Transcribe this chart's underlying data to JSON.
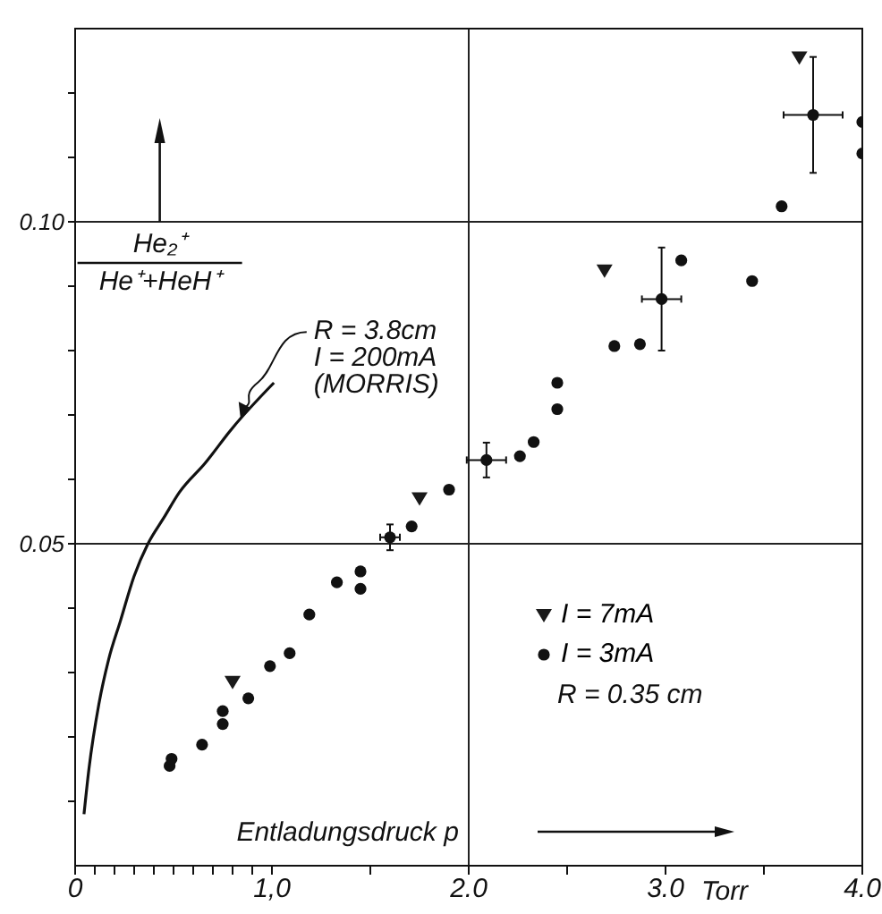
{
  "chart_data": {
    "type": "scatter",
    "ylabel": "He₂⁺",
    "xlabel": "Entladungsdruck p",
    "xlim": [
      0,
      4
    ],
    "ylim": [
      0,
      0.13
    ],
    "xticks": [
      {
        "value": 0,
        "label": "0"
      },
      {
        "value": 0.1,
        "label": null
      },
      {
        "value": 0.2,
        "label": null
      },
      {
        "value": 0.3,
        "label": null
      },
      {
        "value": 0.4,
        "label": null
      },
      {
        "value": 0.5,
        "label": null
      },
      {
        "value": 0.6,
        "label": null
      },
      {
        "value": 0.7,
        "label": null
      },
      {
        "value": 0.8,
        "label": null
      },
      {
        "value": 0.9,
        "label": null
      },
      {
        "value": 1,
        "label": "1,0"
      },
      {
        "value": 1.5,
        "label": null
      },
      {
        "value": 2,
        "label": "2.0"
      },
      {
        "value": 2.5,
        "label": null
      },
      {
        "value": 3,
        "label": "3.0"
      },
      {
        "value": 3.5,
        "label": null
      },
      {
        "value": 4,
        "label": "4.0"
      }
    ],
    "yticks": [
      {
        "value": 0.01,
        "label": null
      },
      {
        "value": 0.02,
        "label": null
      },
      {
        "value": 0.03,
        "label": null
      },
      {
        "value": 0.04,
        "label": null
      },
      {
        "value": 0.05,
        "label": "0.05"
      },
      {
        "value": 0.06,
        "label": null
      },
      {
        "value": 0.07,
        "label": null
      },
      {
        "value": 0.08,
        "label": null
      },
      {
        "value": 0.09,
        "label": null
      },
      {
        "value": 0.1,
        "label": "0.10"
      },
      {
        "value": 0.11,
        "label": null
      },
      {
        "value": 0.12,
        "label": null
      }
    ],
    "grid": false,
    "legend": "bottom",
    "ref_lines": [
      {
        "axis": "x",
        "value": 2
      },
      {
        "axis": "y",
        "value": 0.05
      },
      {
        "axis": "y",
        "value": 0.1
      }
    ],
    "annotations": [
      "He⁺+HeH⁺",
      {
        "text": "R = 3.8cm",
        "x": 0.84,
        "y": 0.069
      },
      "I = 200mA",
      "(MORRIS)",
      "R = 0.35 cm",
      "Torr"
    ],
    "series": [
      {
        "name": "I = 7mA",
        "marker": "triangle",
        "color": "#1a1a1a",
        "x": [
          0.8,
          1.75,
          2.69,
          3.68
        ],
        "values": [
          0.0285,
          0.057,
          0.0924,
          0.1255
        ]
      },
      {
        "name": "I = 3mA",
        "marker": "circle",
        "color": "#111111",
        "x": [
          0.48,
          0.49,
          0.645,
          0.75,
          0.75,
          0.88,
          0.99,
          1.09,
          1.19,
          1.33,
          1.45,
          1.45,
          1.6,
          1.71,
          1.9,
          2.09,
          2.26,
          2.33,
          2.45,
          2.45,
          2.74,
          2.87,
          2.98,
          3.08,
          3.44,
          3.59,
          3.75,
          4.0,
          4.0
        ],
        "values": [
          0.0155,
          0.0166,
          0.0188,
          0.022,
          0.024,
          0.026,
          0.031,
          0.033,
          0.039,
          0.044,
          0.043,
          0.0457,
          0.051,
          0.0527,
          0.0584,
          0.063,
          0.0636,
          0.0658,
          0.0709,
          0.075,
          0.0807,
          0.081,
          0.088,
          0.094,
          0.0908,
          0.1024,
          0.1166,
          0.1155,
          0.1106
        ],
        "errors": [
          null,
          null,
          null,
          null,
          null,
          null,
          null,
          null,
          null,
          null,
          null,
          null,
          0.002,
          null,
          null,
          0.0027,
          null,
          null,
          null,
          null,
          null,
          null,
          0.008,
          null,
          null,
          null,
          0.009,
          null,
          null
        ],
        "xerrors": [
          null,
          null,
          null,
          null,
          null,
          null,
          null,
          null,
          null,
          null,
          null,
          null,
          0.05,
          null,
          null,
          0.1,
          null,
          null,
          null,
          null,
          null,
          null,
          0.1,
          null,
          null,
          null,
          0.15,
          null,
          null
        ]
      },
      {
        "type": "line",
        "marker": "none",
        "line_style": "solid",
        "color": "#111111",
        "x": [
          0.045,
          0.07,
          0.12,
          0.17,
          0.23,
          0.3,
          0.37,
          0.45,
          0.53,
          0.66,
          0.8,
          1.01
        ],
        "values": [
          0.008,
          0.015,
          0.025,
          0.032,
          0.038,
          0.045,
          0.05,
          0.054,
          0.058,
          0.0625,
          0.068,
          0.075
        ]
      }
    ]
  }
}
